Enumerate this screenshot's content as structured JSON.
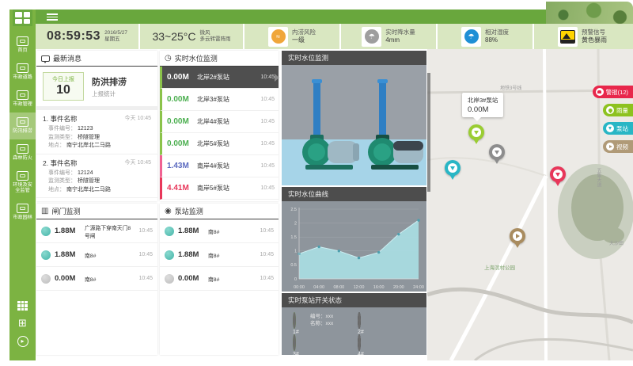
{
  "colors": {
    "brand_green": "#7cb342",
    "accent_dark": "#4d4d4d",
    "alarm_red": "#e8274b",
    "rain_green": "#8dc21f",
    "pump_teal": "#29b6c5",
    "video_tan": "#b09a77",
    "ok_green": "#4caf50",
    "warn_purple": "#5c6bc0",
    "danger_red": "#e8375a"
  },
  "header": {
    "time": "08:59:53",
    "date": "2016/5/27",
    "weekday": "星期五",
    "temp": "33~25°C",
    "wind": "微风",
    "weather": "多云转雷阵雨",
    "cards": [
      {
        "label": "内涝风险",
        "value": "一级",
        "icon": "flood-risk-icon",
        "color": "#f0a63a"
      },
      {
        "label": "实时降水量",
        "value": "4mm",
        "icon": "rainfall-icon",
        "color": "#9e9e9e"
      },
      {
        "label": "相对湿度",
        "value": "88%",
        "icon": "humidity-icon",
        "color": "#1f8fd5"
      },
      {
        "label": "预警信号",
        "value": "黄色暴雨",
        "icon": "storm-warning-sign-icon",
        "color": "#ffd400"
      }
    ]
  },
  "sidebar": {
    "items": [
      {
        "label": "首页"
      },
      {
        "label": "市政道路"
      },
      {
        "label": "市政管理"
      },
      {
        "label": "防汛排涝",
        "active": true
      },
      {
        "label": "森林防火"
      },
      {
        "label": "环境及安全监管"
      },
      {
        "label": "市政园林"
      }
    ]
  },
  "news": {
    "title": "最新消息",
    "today_label": "今日上报",
    "today_count": "10",
    "category": "防洪排涝",
    "stat_label": "上报统计",
    "items": [
      {
        "index": "1.",
        "name": "事件名称",
        "time": "今天 10:45",
        "no_label": "事件编号：",
        "no": "12123",
        "type_label": "监测类型：",
        "type": "桥隧管理",
        "loc_label": "地点：",
        "loc": "南宁北岸北二马路"
      },
      {
        "index": "2.",
        "name": "事件名称",
        "time": "今天 10:45",
        "no_label": "事件编号：",
        "no": "12124",
        "type_label": "监测类型：",
        "type": "桥隧管理",
        "loc_label": "地点：",
        "loc": "南宁北岸北二马路"
      }
    ]
  },
  "water": {
    "title": "实时水位监测",
    "rows": [
      {
        "value": "0.00M",
        "name": "北岸2#泵站",
        "time": "10:45"
      },
      {
        "value": "0.00M",
        "name": "北岸3#泵站",
        "time": "10:45"
      },
      {
        "value": "0.00M",
        "name": "北岸4#泵站",
        "time": "10:45"
      },
      {
        "value": "0.00M",
        "name": "北岸5#泵站",
        "time": "10:45"
      },
      {
        "value": "1.43M",
        "name": "南岸4#泵站",
        "time": "10:45"
      },
      {
        "value": "4.41M",
        "name": "南岸5#泵站",
        "time": "10:45"
      }
    ]
  },
  "gate": {
    "title": "闸门监测",
    "rows": [
      {
        "value": "1.88M",
        "name": "广源路下穿南天门8号闸",
        "time": "10:45"
      },
      {
        "value": "1.88M",
        "name": "南8#",
        "time": "10:45"
      },
      {
        "value": "0.00M",
        "name": "南8#",
        "time": "10:45"
      }
    ]
  },
  "pumpmon": {
    "title": "泵站监测",
    "rows": [
      {
        "value": "1.88M",
        "name": "南8#",
        "time": "10:45"
      },
      {
        "value": "1.88M",
        "name": "南8#",
        "time": "10:45"
      },
      {
        "value": "0.00M",
        "name": "南8#",
        "time": "10:45"
      }
    ]
  },
  "scene": {
    "title": "实时水位监测"
  },
  "chart_data": {
    "type": "area",
    "title": "实时水位曲线",
    "x": [
      "00:00",
      "04:00",
      "08:00",
      "12:00",
      "16:00",
      "20:00",
      "24:00"
    ],
    "series": [
      {
        "name": "水位",
        "values": [
          0.9,
          1.15,
          1.0,
          0.75,
          0.95,
          1.6,
          2.1
        ]
      }
    ],
    "ylim": [
      0,
      2.5
    ],
    "yticks": [
      0,
      0.5,
      1,
      1.5,
      2,
      2.5
    ],
    "grid": true,
    "legend_position": "none",
    "xlabel": "",
    "ylabel": ""
  },
  "pump_status": {
    "title": "实时泵站开关状态",
    "info_line1": "编号：xxx",
    "info_line2": "名称：xxx",
    "units": [
      {
        "id": "1#",
        "state": "on"
      },
      {
        "id": "2#",
        "state": "off"
      },
      {
        "id": "3#",
        "state": "on"
      },
      {
        "id": "4#",
        "state": "off"
      }
    ]
  },
  "map": {
    "tooltip": {
      "name": "北岸3#泵站",
      "value": "0.00M"
    },
    "labels": {
      "metro": "地铁3号线",
      "road_vert": "五象大道",
      "district": "大沙田",
      "park": "上海滨村公园"
    },
    "buttons": [
      {
        "label": "警报(12)"
      },
      {
        "label": "雨量"
      },
      {
        "label": "泵站"
      },
      {
        "label": "视频"
      }
    ]
  }
}
